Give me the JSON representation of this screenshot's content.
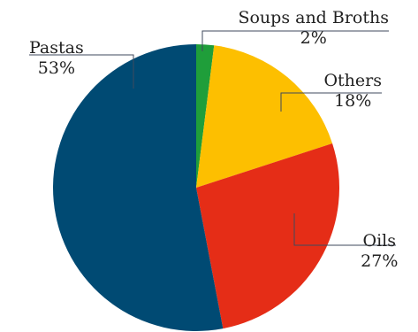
{
  "chart_data": {
    "type": "pie",
    "slices": [
      {
        "label": "Soups and Broths",
        "value": 2,
        "display": "2%",
        "color": "#1f9e3a"
      },
      {
        "label": "Others",
        "value": 18,
        "display": "18%",
        "color": "#fdbf00"
      },
      {
        "label": "Oils",
        "value": 27,
        "display": "27%",
        "color": "#e52d17"
      },
      {
        "label": "Pastas",
        "value": 53,
        "display": "53%",
        "color": "#004a73"
      }
    ],
    "start_angle_deg": 0,
    "direction": "clockwise",
    "legend": "none",
    "data_labels": "outside with leader lines"
  }
}
